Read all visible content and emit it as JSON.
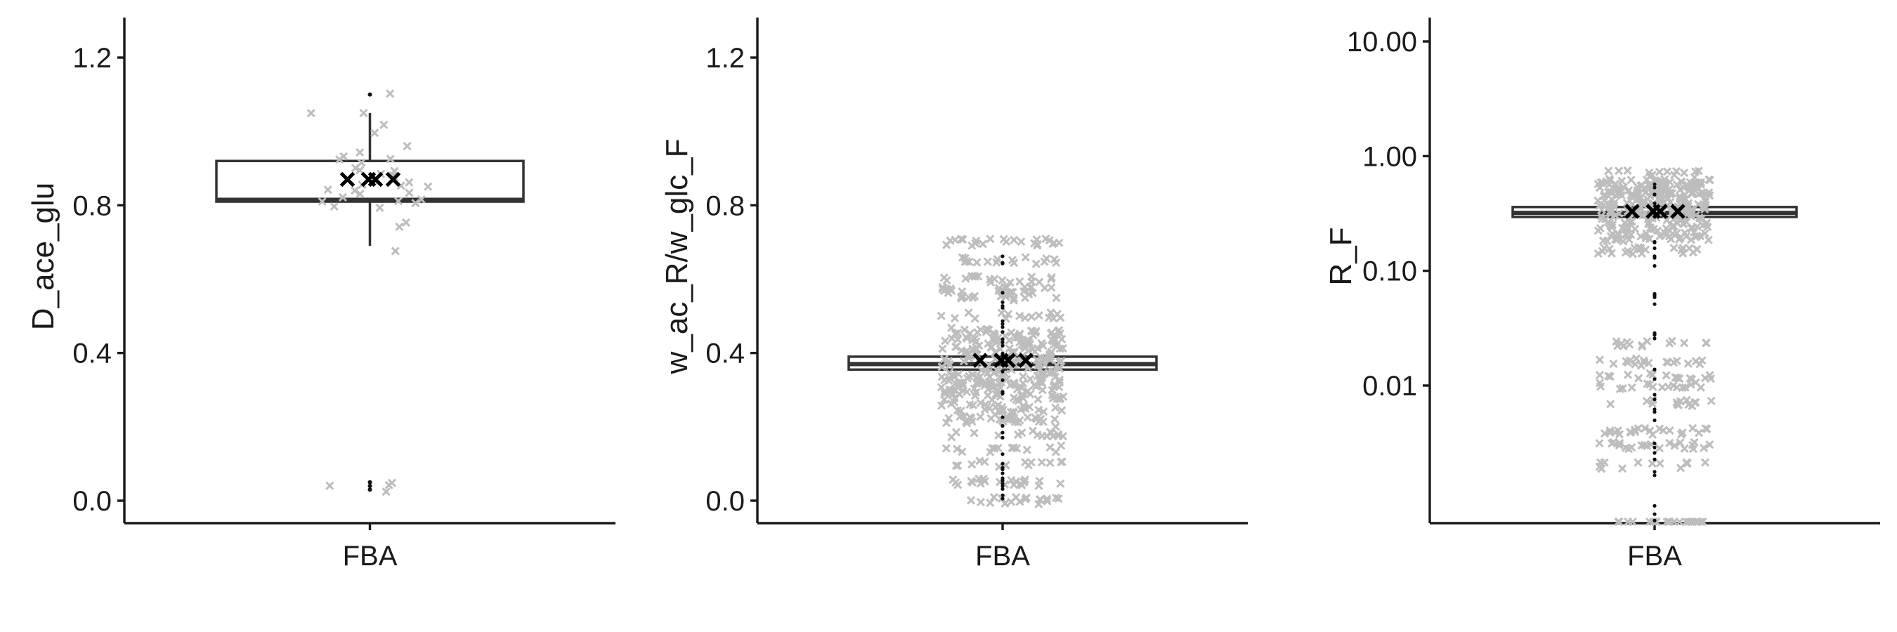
{
  "chart_data": [
    {
      "type": "box",
      "ylabel": "D_ace_glu",
      "ylim": [
        -0.06,
        1.31
      ],
      "yticks": [
        0.0,
        0.4,
        0.8,
        1.2
      ],
      "ytick_labels": [
        "0.0",
        "0.4",
        "0.8",
        "1.2"
      ],
      "log_y": false,
      "categories": [
        "FBA"
      ],
      "box": {
        "q1": 0.81,
        "median": 0.815,
        "q3": 0.92,
        "whisker_low": 0.69,
        "whisker_high": 1.05
      },
      "outliers": [
        1.1,
        0.05,
        0.04,
        0.03
      ],
      "means": [
        0.87,
        0.87,
        0.87,
        0.87
      ],
      "points": [
        0.04,
        0.03,
        0.05,
        0.045,
        0.68,
        0.74,
        0.75,
        0.79,
        0.8,
        0.81,
        0.81,
        0.81,
        0.82,
        0.82,
        0.83,
        0.83,
        0.84,
        0.84,
        0.85,
        0.85,
        0.86,
        0.86,
        0.87,
        0.87,
        0.88,
        0.88,
        0.89,
        0.9,
        0.9,
        0.91,
        0.92,
        0.92,
        0.93,
        0.94,
        0.96,
        1.0,
        1.02,
        1.05,
        1.05,
        1.1
      ]
    },
    {
      "type": "box",
      "ylabel": "w_ac_R/w_glc_F",
      "ylim": [
        -0.06,
        1.31
      ],
      "yticks": [
        0.0,
        0.4,
        0.8,
        1.2
      ],
      "ytick_labels": [
        "0.0",
        "0.4",
        "0.8",
        "1.2"
      ],
      "log_y": false,
      "categories": [
        "FBA"
      ],
      "box": {
        "q1": 0.355,
        "median": 0.37,
        "q3": 0.39,
        "whisker_low": 0.355,
        "whisker_high": 0.39
      },
      "outliers_range": [
        0.0,
        0.7
      ],
      "means": [
        0.38,
        0.38,
        0.38,
        0.38
      ],
      "point_bands": [
        0.0,
        0.05,
        0.1,
        0.14,
        0.18,
        0.22,
        0.25,
        0.28,
        0.3,
        0.32,
        0.34,
        0.36,
        0.38,
        0.4,
        0.42,
        0.44,
        0.46,
        0.5,
        0.55,
        0.57,
        0.6,
        0.65,
        0.7
      ]
    },
    {
      "type": "box",
      "ylabel": "R_F",
      "ylim": [
        0.0006,
        15
      ],
      "yticks": [
        0.01,
        0.1,
        1.0,
        10.0
      ],
      "ytick_labels": [
        "0.01",
        "0.10",
        "1.00",
        "10.00"
      ],
      "log_y": true,
      "categories": [
        "FBA"
      ],
      "box": {
        "q1": 0.295,
        "median": 0.32,
        "q3": 0.36,
        "whisker_low": 0.295,
        "whisker_high": 0.36
      },
      "outliers_range": [
        0.0006,
        0.75
      ],
      "means": [
        0.33,
        0.33,
        0.33,
        0.33
      ],
      "point_bands": [
        0.0006,
        0.002,
        0.003,
        0.004,
        0.007,
        0.01,
        0.012,
        0.016,
        0.023,
        0.15,
        0.2,
        0.25,
        0.3,
        0.35,
        0.4,
        0.45,
        0.5,
        0.55,
        0.6,
        0.7
      ]
    }
  ]
}
